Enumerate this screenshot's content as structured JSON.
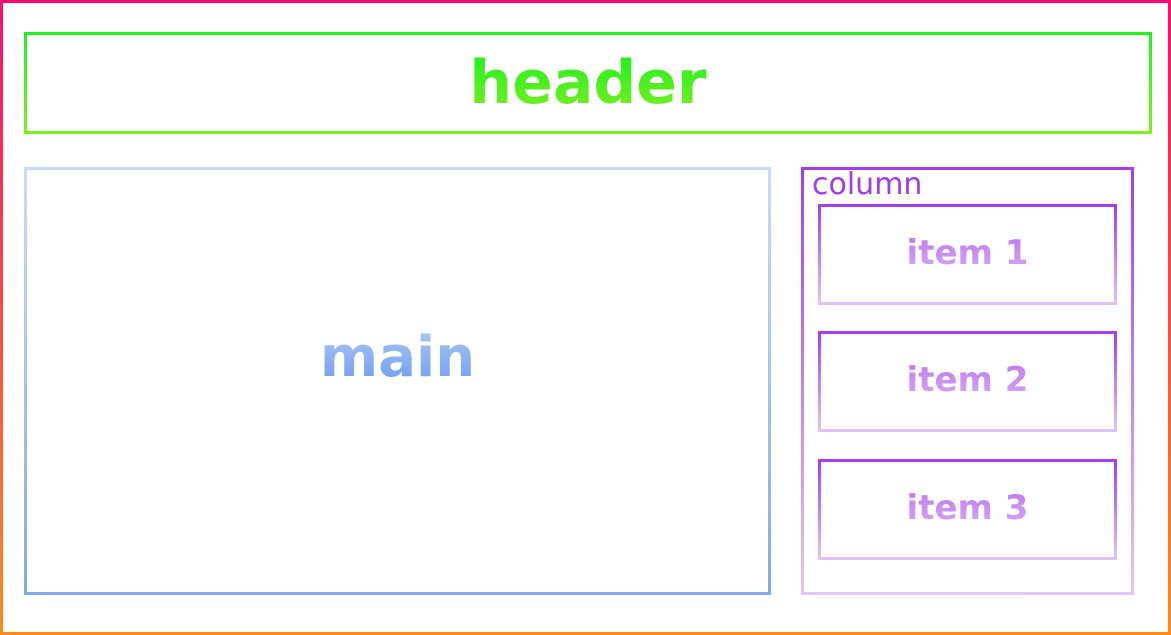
{
  "header": {
    "label": "header"
  },
  "main": {
    "label": "main"
  },
  "column": {
    "label": "column",
    "items": [
      {
        "label": "item 1"
      },
      {
        "label": "item 2"
      },
      {
        "label": "item 3"
      }
    ]
  },
  "colors": {
    "page_border": [
      "#ff0a6c",
      "#ff8a1a"
    ],
    "header": [
      "#1ef21e",
      "#7af21e"
    ],
    "main": [
      "#c9dcf7",
      "#7faaf0"
    ],
    "column": [
      "#a43cf0",
      "#e5c4f7"
    ]
  }
}
